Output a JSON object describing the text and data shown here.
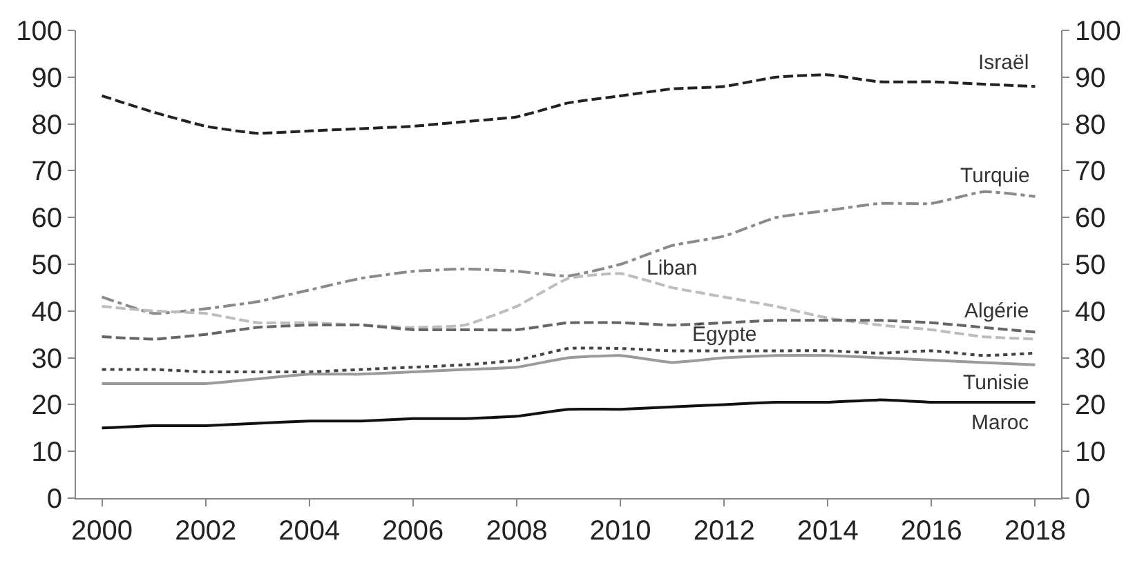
{
  "chart_data": {
    "type": "line",
    "x": [
      2000,
      2001,
      2002,
      2003,
      2004,
      2005,
      2006,
      2007,
      2008,
      2009,
      2010,
      2011,
      2012,
      2013,
      2014,
      2015,
      2016,
      2017,
      2018
    ],
    "xlim": [
      1999.5,
      2018.5
    ],
    "xticks": [
      2000,
      2002,
      2004,
      2006,
      2008,
      2010,
      2012,
      2014,
      2016,
      2018
    ],
    "ylim": [
      0,
      100
    ],
    "yticks": [
      0,
      10,
      20,
      30,
      40,
      50,
      60,
      70,
      80,
      90,
      100
    ],
    "y2lim": [
      0,
      100
    ],
    "y2ticks": [
      0,
      10,
      20,
      30,
      40,
      50,
      60,
      70,
      80,
      90,
      100
    ],
    "legend": false,
    "marker": "none",
    "series": [
      {
        "name": "Israël",
        "color": "#222222",
        "line_style": "dashed",
        "values": [
          86,
          82.5,
          79.5,
          78,
          78.5,
          79,
          79.5,
          80.5,
          81.5,
          84.5,
          86,
          87.5,
          88,
          90,
          90.5,
          89,
          89,
          88.5,
          88
        ]
      },
      {
        "name": "Turquie",
        "color": "#8a8a8a",
        "line_style": "dashdot",
        "values": [
          43,
          39.5,
          40.5,
          42,
          44.5,
          47,
          48.5,
          49,
          48.5,
          47.5,
          50,
          54,
          56,
          60,
          61.5,
          63,
          63,
          65.5,
          64.5
        ]
      },
      {
        "name": "Liban",
        "color": "#bdbdbd",
        "line_style": "dashed",
        "values": [
          41,
          40,
          39.5,
          37.5,
          37.5,
          37,
          36.5,
          37,
          41,
          47,
          48,
          45,
          43,
          41,
          38.5,
          37,
          36,
          34.5,
          34
        ]
      },
      {
        "name": "Algérie",
        "color": "#666666",
        "line_style": "dashed",
        "values": [
          34.5,
          34,
          35,
          36.5,
          37,
          37,
          36,
          36,
          36,
          37.5,
          37.5,
          37,
          37.5,
          38,
          38,
          38,
          37.5,
          36.5,
          35.5
        ]
      },
      {
        "name": "Égypte",
        "color": "#444444",
        "line_style": "dotted",
        "values": [
          27.5,
          27.5,
          27,
          27,
          27,
          27.5,
          28,
          28.5,
          29.5,
          32,
          32,
          31.5,
          31.5,
          31.5,
          31.5,
          31,
          31.5,
          30.5,
          31
        ]
      },
      {
        "name": "Tunisie",
        "color": "#9a9a9a",
        "line_style": "solid",
        "values": [
          24.5,
          24.5,
          24.5,
          25.5,
          26.5,
          26.5,
          27,
          27.5,
          28,
          30,
          30.5,
          29,
          30,
          30.5,
          30.5,
          30,
          29.5,
          29,
          28.5
        ]
      },
      {
        "name": "Maroc",
        "color": "#111111",
        "line_style": "solid",
        "values": [
          15,
          15.5,
          15.5,
          16,
          16.5,
          16.5,
          17,
          17,
          17.5,
          19,
          19,
          19.5,
          20,
          20.5,
          20.5,
          21,
          20.5,
          20.5,
          20.5
        ]
      }
    ]
  }
}
